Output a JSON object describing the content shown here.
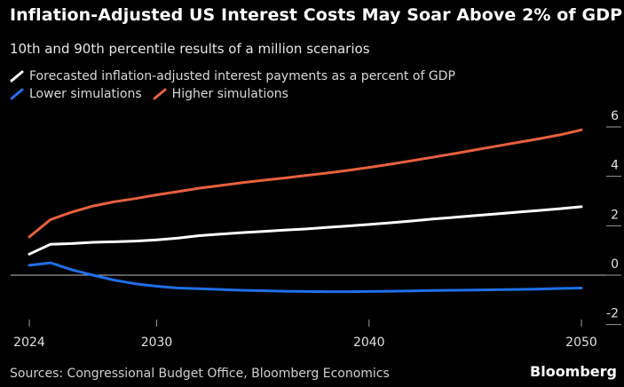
{
  "chart_data": {
    "type": "line",
    "title": "Inflation-Adjusted US Interest Costs May Soar Above 2% of GDP",
    "subtitle": "10th and 90th percentile results of a million scenarios",
    "x": [
      2024,
      2025,
      2026,
      2027,
      2028,
      2029,
      2030,
      2031,
      2032,
      2033,
      2034,
      2035,
      2036,
      2037,
      2038,
      2039,
      2040,
      2041,
      2042,
      2043,
      2044,
      2045,
      2046,
      2047,
      2048,
      2049,
      2050
    ],
    "series": [
      {
        "name": "Forecasted inflation-adjusted interest payments as a percent of GDP",
        "color": "#ffffff",
        "values": [
          0.85,
          1.25,
          1.28,
          1.33,
          1.35,
          1.38,
          1.43,
          1.5,
          1.6,
          1.66,
          1.72,
          1.77,
          1.82,
          1.87,
          1.93,
          1.99,
          2.05,
          2.12,
          2.19,
          2.27,
          2.34,
          2.41,
          2.48,
          2.55,
          2.62,
          2.69,
          2.77
        ]
      },
      {
        "name": "Lower simulations",
        "color": "#1f6fe8",
        "values": [
          0.4,
          0.5,
          0.22,
          0.0,
          -0.2,
          -0.35,
          -0.45,
          -0.52,
          -0.55,
          -0.58,
          -0.61,
          -0.63,
          -0.65,
          -0.66,
          -0.67,
          -0.67,
          -0.66,
          -0.65,
          -0.64,
          -0.62,
          -0.61,
          -0.6,
          -0.59,
          -0.58,
          -0.56,
          -0.54,
          -0.52
        ]
      },
      {
        "name": "Higher simulations",
        "color": "#e8613c",
        "values": [
          1.55,
          2.25,
          2.55,
          2.8,
          2.97,
          3.1,
          3.25,
          3.38,
          3.52,
          3.63,
          3.74,
          3.84,
          3.93,
          4.03,
          4.13,
          4.24,
          4.36,
          4.49,
          4.63,
          4.77,
          4.92,
          5.07,
          5.22,
          5.37,
          5.52,
          5.68,
          5.88
        ]
      }
    ],
    "x_ticks": [
      "2024",
      "2030",
      "2040",
      "2050"
    ],
    "y_ticks": [
      "6",
      "4",
      "2",
      "0",
      "-2"
    ],
    "xlim": [
      2024,
      2050
    ],
    "ylim": [
      -2,
      6
    ],
    "zero_line": true,
    "legend_position": "top-left"
  },
  "source": "Sources: Congressional Budget Office, Bloomberg Economics",
  "logo": "Bloomberg"
}
